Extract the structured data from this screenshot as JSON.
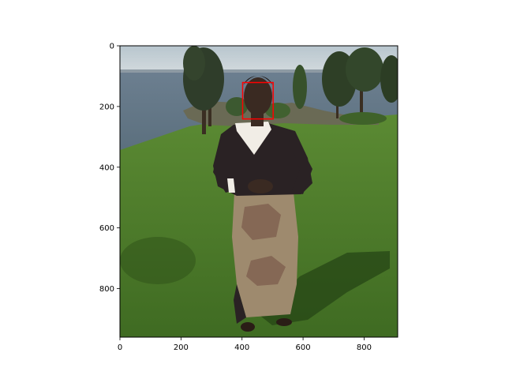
{
  "plot": {
    "image_width": 910,
    "image_height": 960,
    "xlim": [
      0,
      910
    ],
    "ylim": [
      960,
      0
    ],
    "y_inverted": true,
    "x_ticks": [
      0,
      200,
      400,
      600,
      800
    ],
    "y_ticks": [
      0,
      200,
      400,
      600,
      800
    ],
    "face_box": {
      "x": 402,
      "y": 121,
      "width": 100,
      "height": 120,
      "color": "#ff0000"
    }
  },
  "colors": {
    "sky": "#c9d3d8",
    "lake": "#6f8495",
    "grass": "#4d7a2c",
    "grass_dark": "#2f5319",
    "trees": "#2f3d2a",
    "dress": "#2a2224",
    "skirt": "#9e8a6e",
    "skin": "#3a2a22"
  }
}
